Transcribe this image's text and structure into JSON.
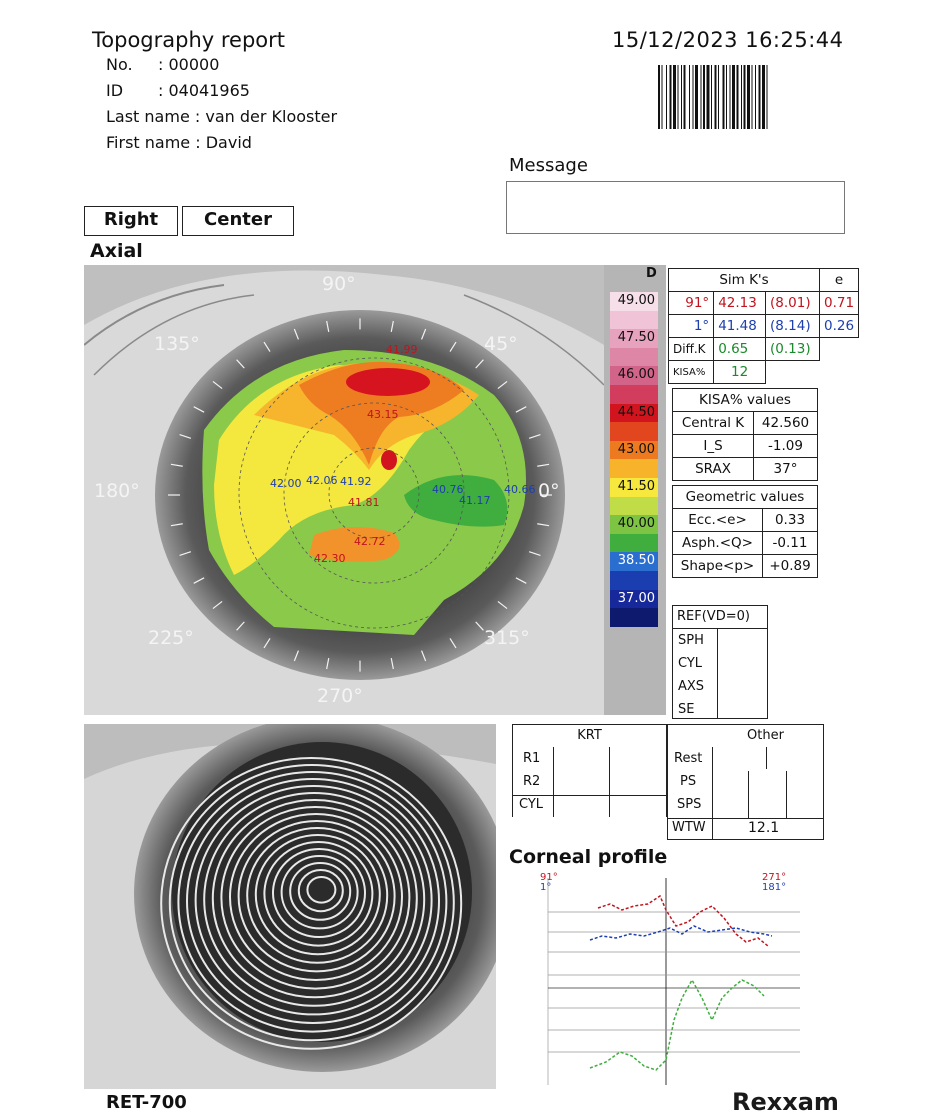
{
  "header": {
    "title": "Topography report",
    "fields": [
      {
        "label": "No.",
        "sep": ": ",
        "value": "00000"
      },
      {
        "label": "ID",
        "sep": ": ",
        "value": "04041965"
      },
      {
        "label": "Last name",
        "sep": ": ",
        "value": "van der Klooster"
      },
      {
        "label": "First name",
        "sep": ": ",
        "value": "David"
      }
    ],
    "datetime": "15/12/2023 16:25:44"
  },
  "message": {
    "label": "Message",
    "value": ""
  },
  "mode": {
    "eye": "Right",
    "position": "Center"
  },
  "map": {
    "title": "Axial",
    "angles": [
      "90°",
      "45°",
      "135°",
      "180°",
      "0°",
      "225°",
      "315°",
      "270°"
    ],
    "point_values": [
      "41.99",
      "43.15",
      "42.06",
      "42.00",
      "41.92",
      "41.81",
      "40.76",
      "41.17",
      "40.66",
      "42.72",
      "42.30"
    ],
    "scale_unit": "D",
    "scale_steps": [
      {
        "label": "49.00",
        "color": "#f7dfea"
      },
      {
        "label": "",
        "color": "#f0c4d6"
      },
      {
        "label": "47.50",
        "color": "#e7a2bd"
      },
      {
        "label": "",
        "color": "#de86a5"
      },
      {
        "label": "46.00",
        "color": "#d36489"
      },
      {
        "label": "",
        "color": "#d23d5e"
      },
      {
        "label": "44.50",
        "color": "#d2141e"
      },
      {
        "label": "",
        "color": "#e2461e"
      },
      {
        "label": "43.00",
        "color": "#ee7a1f"
      },
      {
        "label": "",
        "color": "#f7b32a"
      },
      {
        "label": "41.50",
        "color": "#f6e83c"
      },
      {
        "label": "",
        "color": "#c0dc46"
      },
      {
        "label": "40.00",
        "color": "#7cc441"
      },
      {
        "label": "",
        "color": "#3fae3f"
      },
      {
        "label": "38.50",
        "color": "#2a6fd0"
      },
      {
        "label": "",
        "color": "#1a3eb0"
      },
      {
        "label": "37.00",
        "color": "#16289a"
      },
      {
        "label": "",
        "color": "#0e1a6e"
      }
    ]
  },
  "simk": {
    "header": "Sim K's",
    "e_header": "e",
    "rows": [
      {
        "axis": "91°",
        "k": "42.13",
        "r": "(8.01)",
        "e": "0.71",
        "color": "red"
      },
      {
        "axis": "1°",
        "k": "41.48",
        "r": "(8.14)",
        "e": "0.26",
        "color": "blue"
      }
    ],
    "diff": {
      "label": "Diff.K",
      "k": "0.65",
      "r": "(0.13)"
    },
    "kisa": {
      "label": "KISA%",
      "value": "12"
    }
  },
  "kisa_values": {
    "header": "KISA% values",
    "rows": [
      {
        "label": "Central K",
        "value": "42.560"
      },
      {
        "label": "I_S",
        "value": "-1.09"
      },
      {
        "label": "SRAX",
        "value": "37°"
      }
    ]
  },
  "geometric": {
    "header": "Geometric values",
    "rows": [
      {
        "label": "Ecc.<e>",
        "value": "0.33"
      },
      {
        "label": "Asph.<Q>",
        "value": "-0.11"
      },
      {
        "label": "Shape<p>",
        "value": "+0.89"
      }
    ]
  },
  "ref": {
    "header": "REF(VD=0)",
    "rows": [
      "SPH",
      "CYL",
      "AXS",
      "SE"
    ]
  },
  "krt": {
    "header": "KRT",
    "rows": [
      "R1",
      "R2",
      "CYL"
    ]
  },
  "other": {
    "header": "Other",
    "rows": [
      "Rest",
      "PS",
      "SPS",
      "WTW"
    ],
    "wtw": "12.1"
  },
  "profile": {
    "title": "Corneal profile",
    "legend_left": [
      "91°",
      "1°"
    ],
    "legend_right": [
      "271°",
      "181°"
    ]
  },
  "footer": {
    "model": "RET-700",
    "brand": "Rexxam"
  }
}
